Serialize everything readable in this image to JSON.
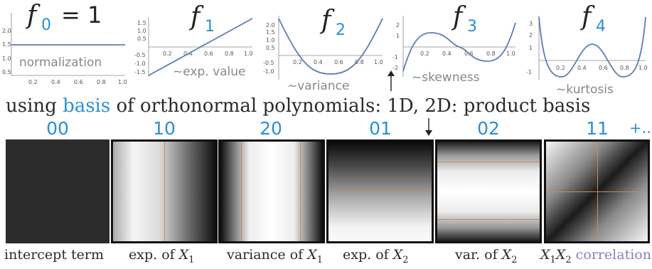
{
  "plots": [
    {
      "name": "f",
      "sub": "0",
      "eq": "= 1",
      "label": "normalization",
      "yticks": [
        "2.0",
        "1.5",
        "1.0",
        "0.5"
      ],
      "xticks": [
        "0.2",
        "0.4",
        "0.6",
        "0.8",
        "1.0"
      ]
    },
    {
      "name": "f",
      "sub": "1",
      "eq": "",
      "label": "~exp. value",
      "yticks": [
        "1.5",
        "1.0",
        "0.5",
        "-0.5",
        "-1.0",
        "-1.5"
      ],
      "xticks": [
        "0.2",
        "0.4",
        "0.6",
        "0.8",
        "1.0"
      ]
    },
    {
      "name": "f",
      "sub": "2",
      "eq": "",
      "label": "~variance",
      "yticks": [
        "2.0",
        "1.5",
        "1.0",
        "0.5",
        "-0.5",
        "-1.0"
      ],
      "xticks": [
        "0.2",
        "0.4",
        "0.6",
        "0.8",
        "1.0"
      ]
    },
    {
      "name": "f",
      "sub": "3",
      "eq": "",
      "label": "~skewness",
      "yticks": [
        "2",
        "1",
        "-1",
        "-2"
      ],
      "xticks": [
        "0.2",
        "0.4",
        "0.6",
        "0.8",
        "1.0"
      ]
    },
    {
      "name": "f",
      "sub": "4",
      "eq": "",
      "label": "~kurtosis",
      "yticks": [
        "3",
        "2",
        "1",
        "-1"
      ],
      "xticks": [
        "0.2",
        "0.4",
        "0.6",
        "0.8",
        "1.0"
      ]
    }
  ],
  "basis_line": {
    "before": "using ",
    "highlight": "basis",
    "after": " of orthonormal polynomials: 1D, 2D: product basis"
  },
  "tiles": [
    {
      "code": "00",
      "caption": "intercept term",
      "cap_var": "",
      "cap_sub": ""
    },
    {
      "code": "10",
      "caption": "exp. of ",
      "cap_var": "X",
      "cap_sub": "1"
    },
    {
      "code": "20",
      "caption": "variance of ",
      "cap_var": "X",
      "cap_sub": "1"
    },
    {
      "code": "01",
      "caption": "exp. of ",
      "cap_var": "X",
      "cap_sub": "2"
    },
    {
      "code": "02",
      "caption": "var. of ",
      "cap_var": "X",
      "cap_sub": "2"
    },
    {
      "code": "11",
      "caption": "",
      "cap_var": "X",
      "cap_sub": "1"
    }
  ],
  "last_caption": {
    "var2": "X",
    "sub2": "2",
    "word": "correlation"
  },
  "more": "+..",
  "colors": {
    "accent": "#2a8fd6",
    "curve": "#5a7fb3",
    "purple": "#8a7fc4",
    "overlay": "#c9895b"
  }
}
